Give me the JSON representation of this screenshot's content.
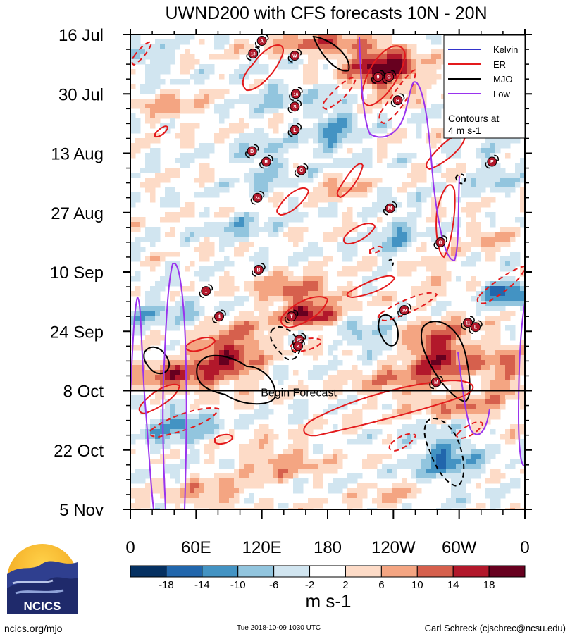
{
  "chart_data": {
    "type": "heatmap",
    "title": "UWND200 with CFS forecasts  10N - 20N",
    "x_axis": {
      "label": "",
      "tick_labels": [
        "0",
        "60E",
        "120E",
        "180",
        "120W",
        "60W",
        "0"
      ],
      "range_deg_east": [
        0,
        360
      ]
    },
    "y_axis": {
      "label": "",
      "tick_labels": [
        "16 Jul",
        "30 Jul",
        "13 Aug",
        "27 Aug",
        "10 Sep",
        "24 Sep",
        "8 Oct",
        "22 Oct",
        "5 Nov"
      ],
      "range_days_from_16jul": [
        0,
        112
      ]
    },
    "forecast_line": {
      "label": "Begin Forecast",
      "day": 84
    },
    "legend": {
      "position": "top-right",
      "entries": [
        {
          "name": "Kelvin",
          "color": "#3333cc"
        },
        {
          "name": "ER",
          "color": "#e31a1c"
        },
        {
          "name": "MJO",
          "color": "#000000"
        },
        {
          "name": "Low",
          "color": "#9933ee"
        }
      ],
      "note_line1": "Contours at",
      "note_line2": "4 m s-1"
    },
    "colorbar": {
      "unit": "m s-1",
      "tick_labels": [
        "-18",
        "-14",
        "-10",
        "-6",
        "-2",
        "2",
        "6",
        "10",
        "14",
        "18"
      ],
      "colors": [
        "#053061",
        "#2166ac",
        "#4393c3",
        "#92c5de",
        "#d1e5f0",
        "#ffffff",
        "#fddbc7",
        "#f4a582",
        "#d6604d",
        "#b2182b",
        "#67001f"
      ]
    },
    "storms": [
      {
        "label": "A",
        "lon": 120,
        "day": 1.5
      },
      {
        "label": "13",
        "lon": 112,
        "day": 4.5
      },
      {
        "label": "W",
        "lon": 150,
        "day": 5
      },
      {
        "label": "9",
        "lon": 226,
        "day": 10
      },
      {
        "label": "G",
        "lon": 236,
        "day": 10
      },
      {
        "label": "16",
        "lon": 151,
        "day": 14
      },
      {
        "label": "S",
        "lon": 150,
        "day": 17
      },
      {
        "label": "H",
        "lon": 244,
        "day": 15.5
      },
      {
        "label": "L",
        "lon": 150,
        "day": 22.5
      },
      {
        "label": "B",
        "lon": 111,
        "day": 27.5
      },
      {
        "label": "R",
        "lon": 124,
        "day": 30
      },
      {
        "label": "C",
        "lon": 156,
        "day": 32
      },
      {
        "label": "E",
        "lon": 330,
        "day": 30
      },
      {
        "label": "24",
        "lon": 116,
        "day": 38.5
      },
      {
        "label": "M",
        "lon": 237,
        "day": 41
      },
      {
        "label": "G",
        "lon": 283,
        "day": 49
      },
      {
        "label": "B",
        "lon": 117,
        "day": 55.5
      },
      {
        "label": "1",
        "lon": 69,
        "day": 60.5
      },
      {
        "label": "4",
        "lon": 81,
        "day": 66.5
      },
      {
        "label": "T",
        "lon": 147,
        "day": 66.5
      },
      {
        "label": "25",
        "lon": 154,
        "day": 72
      },
      {
        "label": "K",
        "lon": 153,
        "day": 73.5
      },
      {
        "label": "19",
        "lon": 250,
        "day": 65
      },
      {
        "label": "M",
        "lon": 279,
        "day": 82
      },
      {
        "label": "11",
        "lon": 308,
        "day": 68
      },
      {
        "label": "L",
        "lon": 315,
        "day": 69
      }
    ]
  },
  "footer": {
    "logo_text": "NCICS",
    "left_text": "ncics.org/mjo",
    "timestamp": "Tue 2018-10-09 1030 UTC",
    "author": "Carl Schreck (cjschrec@ncsu.edu)"
  }
}
